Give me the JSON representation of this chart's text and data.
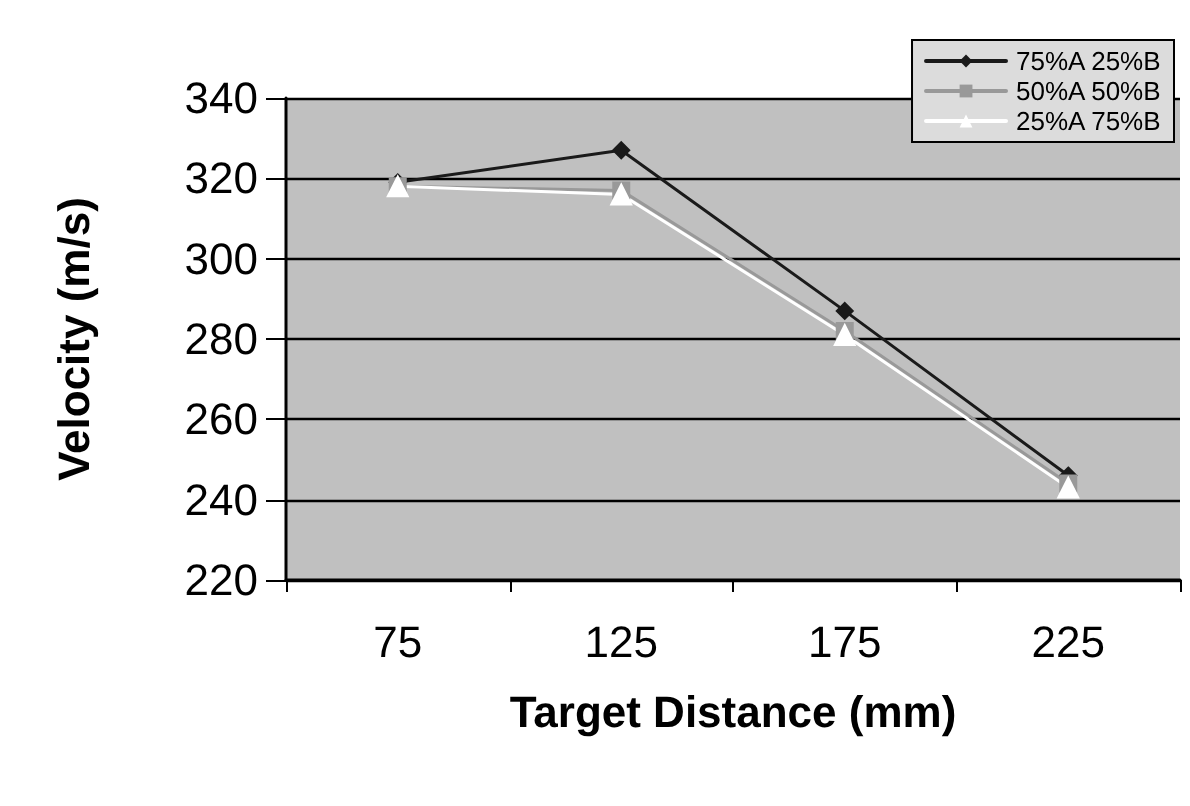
{
  "chart_data": {
    "type": "line",
    "xlabel": "Target Distance (mm)",
    "ylabel": "Velocity (m/s)",
    "categories": [
      "75",
      "125",
      "175",
      "225"
    ],
    "series": [
      {
        "name": "75%A 25%B",
        "color": "#1a1a1a",
        "marker": "diamond",
        "values": [
          319,
          327,
          287,
          246
        ]
      },
      {
        "name": "50%A 50%B",
        "color": "#999999",
        "marker": "square",
        "values": [
          318,
          317,
          282,
          244
        ]
      },
      {
        "name": "25%A 75%B",
        "color": "#ffffff",
        "marker": "triangle",
        "values": [
          318,
          316,
          281,
          243
        ]
      }
    ],
    "ylim": [
      220,
      340
    ],
    "yticks": [
      220,
      240,
      260,
      280,
      300,
      320,
      340
    ],
    "grid": "y",
    "legend": "top right",
    "line_style": "solid"
  }
}
